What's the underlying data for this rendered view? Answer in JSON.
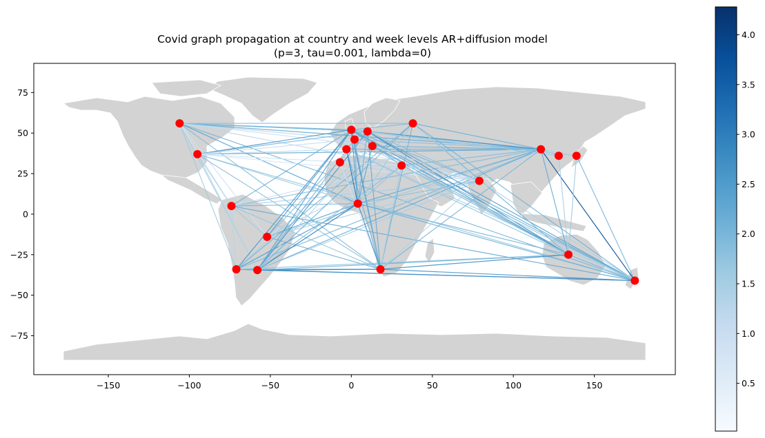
{
  "chart_data": {
    "type": "map",
    "title": "Covid graph propagation at country and week levels AR+diffusion model",
    "subtitle": "(p=3, tau=0.001, lambda=0)",
    "xlim": [
      -196,
      200
    ],
    "ylim": [
      -99,
      93
    ],
    "xticks": [
      -150,
      -100,
      -50,
      0,
      50,
      100,
      150
    ],
    "xtick_labels": [
      "−150",
      "−100",
      "−50",
      "0",
      "50",
      "100",
      "150"
    ],
    "yticks": [
      -75,
      -50,
      -25,
      0,
      25,
      50,
      75
    ],
    "ytick_labels": [
      "−75",
      "−50",
      "−25",
      "0",
      "25",
      "50",
      "75"
    ],
    "colorbar": {
      "colormap": "Blues",
      "range": [
        0.02,
        4.28
      ],
      "ticks": [
        0.5,
        1.0,
        1.5,
        2.0,
        2.5,
        3.0,
        3.5,
        4.0
      ],
      "tick_labels": [
        "0.5",
        "1.0",
        "1.5",
        "2.0",
        "2.5",
        "3.0",
        "3.5",
        "4.0"
      ]
    },
    "node_color": "#ff0000",
    "land_color": "#d3d3d3",
    "nodes": [
      {
        "lon": -106,
        "lat": 56
      },
      {
        "lon": -95,
        "lat": 37
      },
      {
        "lon": -74,
        "lat": 5
      },
      {
        "lon": -52,
        "lat": -14
      },
      {
        "lon": -71,
        "lat": -34
      },
      {
        "lon": -58,
        "lat": -34.5
      },
      {
        "lon": -7,
        "lat": 32
      },
      {
        "lon": -3,
        "lat": 40
      },
      {
        "lon": 0,
        "lat": 52
      },
      {
        "lon": 2,
        "lat": 46
      },
      {
        "lon": 10,
        "lat": 51
      },
      {
        "lon": 13,
        "lat": 42
      },
      {
        "lon": 4,
        "lat": 6.5
      },
      {
        "lon": 18,
        "lat": -34
      },
      {
        "lon": 31,
        "lat": 30
      },
      {
        "lon": 38,
        "lat": 56
      },
      {
        "lon": 79,
        "lat": 20.5
      },
      {
        "lon": 117,
        "lat": 40
      },
      {
        "lon": 128,
        "lat": 36
      },
      {
        "lon": 139,
        "lat": 36
      },
      {
        "lon": 134,
        "lat": -25
      },
      {
        "lon": 175,
        "lat": -41
      }
    ],
    "edges": [
      [
        0,
        8,
        2.1
      ],
      [
        0,
        10,
        2.0
      ],
      [
        0,
        15,
        1.8
      ],
      [
        0,
        17,
        2.2
      ],
      [
        0,
        12,
        2.4
      ],
      [
        0,
        13,
        1.9
      ],
      [
        0,
        21,
        2.0
      ],
      [
        0,
        4,
        1.6
      ],
      [
        0,
        5,
        1.5
      ],
      [
        0,
        14,
        1.2
      ],
      [
        0,
        11,
        1.0
      ],
      [
        0,
        9,
        1.3
      ],
      [
        0,
        2,
        0.8
      ],
      [
        0,
        3,
        0.9
      ],
      [
        1,
        8,
        2.6
      ],
      [
        1,
        10,
        2.0
      ],
      [
        1,
        17,
        2.3
      ],
      [
        1,
        12,
        1.6
      ],
      [
        1,
        13,
        1.8
      ],
      [
        1,
        21,
        1.7
      ],
      [
        1,
        2,
        1.4
      ],
      [
        1,
        5,
        1.3
      ],
      [
        1,
        14,
        0.9
      ],
      [
        1,
        7,
        1.1
      ],
      [
        1,
        16,
        0.7
      ],
      [
        1,
        9,
        1.0
      ],
      [
        2,
        12,
        2.0
      ],
      [
        2,
        8,
        2.1
      ],
      [
        2,
        13,
        1.7
      ],
      [
        2,
        17,
        1.9
      ],
      [
        2,
        21,
        2.2
      ],
      [
        2,
        16,
        1.5
      ],
      [
        2,
        3,
        1.6
      ],
      [
        2,
        4,
        1.3
      ],
      [
        2,
        14,
        1.0
      ],
      [
        3,
        8,
        2.5
      ],
      [
        3,
        12,
        2.3
      ],
      [
        3,
        13,
        2.1
      ],
      [
        3,
        16,
        1.4
      ],
      [
        3,
        17,
        1.6
      ],
      [
        3,
        10,
        1.8
      ],
      [
        3,
        14,
        1.2
      ],
      [
        4,
        5,
        2.3
      ],
      [
        4,
        12,
        2.5
      ],
      [
        4,
        8,
        2.6
      ],
      [
        4,
        13,
        2.1
      ],
      [
        4,
        21,
        2.2
      ],
      [
        4,
        17,
        1.9
      ],
      [
        4,
        20,
        1.7
      ],
      [
        4,
        11,
        1.5
      ],
      [
        4,
        15,
        2.0
      ],
      [
        5,
        13,
        2.9
      ],
      [
        5,
        21,
        2.8
      ],
      [
        5,
        20,
        2.1
      ],
      [
        5,
        12,
        3.0
      ],
      [
        5,
        8,
        2.4
      ],
      [
        5,
        9,
        2.0
      ],
      [
        5,
        10,
        2.6
      ],
      [
        5,
        15,
        2.1
      ],
      [
        5,
        17,
        2.2
      ],
      [
        5,
        16,
        1.5
      ],
      [
        5,
        14,
        1.8
      ],
      [
        5,
        11,
        1.3
      ],
      [
        6,
        12,
        1.4
      ],
      [
        6,
        17,
        1.2
      ],
      [
        6,
        16,
        1.0
      ],
      [
        6,
        13,
        0.9
      ],
      [
        6,
        14,
        0.8
      ],
      [
        7,
        12,
        3.2
      ],
      [
        7,
        13,
        2.1
      ],
      [
        7,
        17,
        2.0
      ],
      [
        7,
        20,
        1.7
      ],
      [
        7,
        16,
        0.9
      ],
      [
        7,
        21,
        1.5
      ],
      [
        8,
        12,
        2.4
      ],
      [
        8,
        13,
        2.8
      ],
      [
        8,
        17,
        2.7
      ],
      [
        8,
        20,
        2.5
      ],
      [
        8,
        21,
        2.2
      ],
      [
        8,
        16,
        2.0
      ],
      [
        8,
        14,
        2.2
      ],
      [
        8,
        15,
        1.9
      ],
      [
        8,
        18,
        1.8
      ],
      [
        8,
        19,
        1.6
      ],
      [
        9,
        12,
        2.1
      ],
      [
        9,
        13,
        1.9
      ],
      [
        9,
        17,
        1.8
      ],
      [
        9,
        20,
        1.6
      ],
      [
        9,
        16,
        1.1
      ],
      [
        10,
        13,
        2.2
      ],
      [
        10,
        17,
        2.6
      ],
      [
        10,
        20,
        2.8
      ],
      [
        10,
        16,
        1.8
      ],
      [
        10,
        12,
        2.0
      ],
      [
        10,
        21,
        2.4
      ],
      [
        10,
        18,
        1.5
      ],
      [
        11,
        12,
        2.3
      ],
      [
        11,
        17,
        2.1
      ],
      [
        11,
        20,
        2.2
      ],
      [
        11,
        16,
        1.3
      ],
      [
        11,
        21,
        2.0
      ],
      [
        12,
        13,
        2.7
      ],
      [
        12,
        16,
        1.8
      ],
      [
        12,
        17,
        2.2
      ],
      [
        12,
        20,
        2.0
      ],
      [
        12,
        21,
        2.1
      ],
      [
        12,
        14,
        1.7
      ],
      [
        12,
        15,
        1.6
      ],
      [
        13,
        21,
        2.6
      ],
      [
        13,
        20,
        2.7
      ],
      [
        13,
        17,
        2.0
      ],
      [
        13,
        15,
        2.1
      ],
      [
        13,
        16,
        1.4
      ],
      [
        13,
        14,
        1.6
      ],
      [
        14,
        17,
        1.9
      ],
      [
        14,
        20,
        1.7
      ],
      [
        14,
        21,
        1.6
      ],
      [
        14,
        16,
        1.3
      ],
      [
        15,
        17,
        2.1
      ],
      [
        15,
        20,
        2.0
      ],
      [
        15,
        21,
        2.1
      ],
      [
        15,
        16,
        1.4
      ],
      [
        16,
        17,
        1.2
      ],
      [
        16,
        21,
        1.4
      ],
      [
        17,
        20,
        2.2
      ],
      [
        17,
        21,
        3.8
      ],
      [
        17,
        18,
        1.6
      ],
      [
        17,
        19,
        1.4
      ],
      [
        18,
        20,
        1.5
      ],
      [
        19,
        21,
        2.0
      ],
      [
        20,
        21,
        2.0
      ],
      [
        19,
        20,
        1.6
      ]
    ]
  }
}
